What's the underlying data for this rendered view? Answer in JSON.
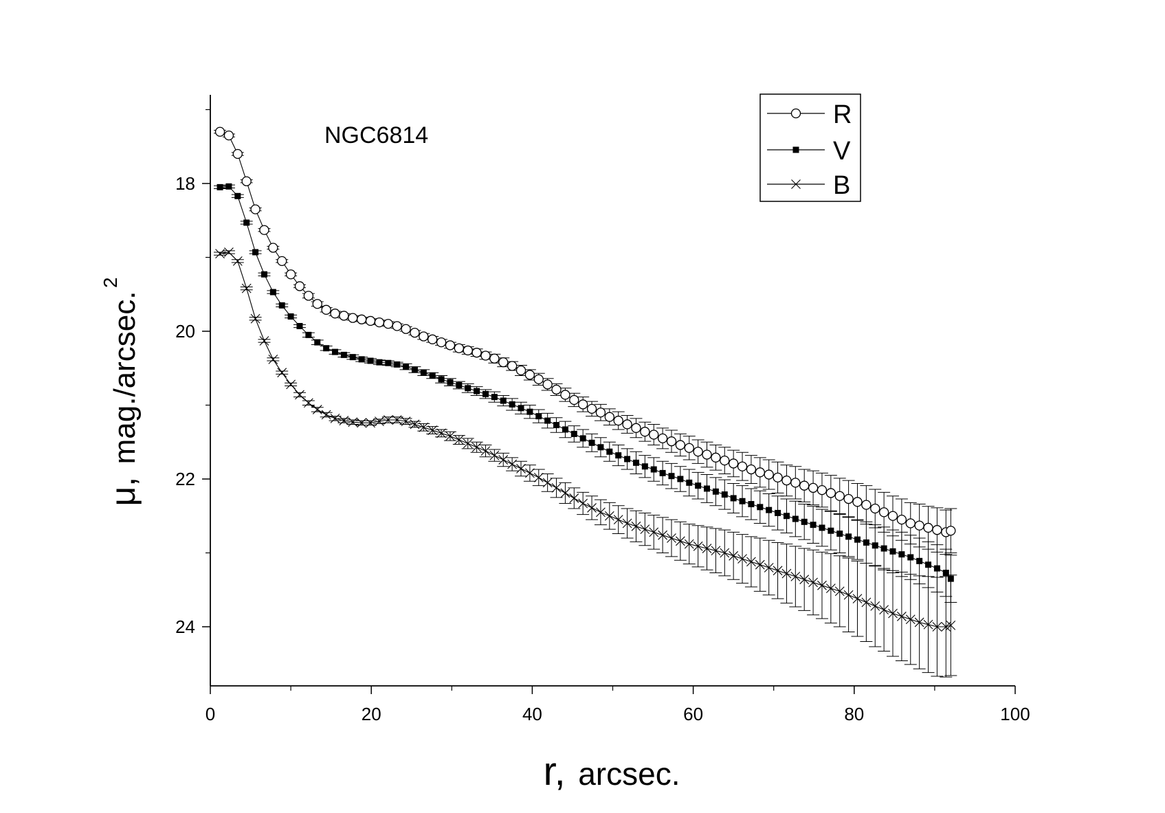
{
  "chart_data": {
    "type": "line",
    "annotation": "NGC6814",
    "xlabel_symbol": "r,",
    "xlabel_unit": "arcsec.",
    "ylabel_symbol": "μ,",
    "ylabel_unit": "mag./arcsec.",
    "ylabel_exponent": "2",
    "xlim": [
      0,
      100
    ],
    "ylim": [
      24.8,
      16.8
    ],
    "y_inverted": true,
    "xticks": [
      0,
      20,
      40,
      60,
      80,
      100
    ],
    "xtick_labels": [
      "0",
      "20",
      "40",
      "60",
      "80",
      "100"
    ],
    "yticks": [
      18,
      20,
      22,
      24
    ],
    "ytick_labels": [
      "18",
      "20",
      "22",
      "24"
    ],
    "legend_position": "top-right",
    "series": [
      {
        "name": "R",
        "marker": "open-circle",
        "x": [
          1.2,
          2.3,
          3.4,
          4.5,
          5.6,
          6.7,
          7.8,
          8.9,
          10.0,
          11.1,
          12.2,
          13.3,
          14.4,
          15.5,
          16.6,
          17.7,
          18.8,
          19.9,
          21.0,
          22.1,
          23.2,
          24.3,
          25.4,
          26.5,
          27.6,
          28.7,
          29.8,
          30.9,
          32.0,
          33.1,
          34.2,
          35.3,
          36.4,
          37.5,
          38.6,
          39.7,
          40.8,
          41.9,
          43.0,
          44.1,
          45.2,
          46.3,
          47.4,
          48.5,
          49.6,
          50.7,
          51.8,
          52.9,
          54.0,
          55.1,
          56.2,
          57.3,
          58.4,
          59.5,
          60.6,
          61.7,
          62.8,
          63.9,
          65.0,
          66.1,
          67.2,
          68.3,
          69.4,
          70.5,
          71.6,
          72.7,
          73.8,
          74.9,
          76.0,
          77.1,
          78.2,
          79.3,
          80.4,
          81.5,
          82.6,
          83.7,
          84.8,
          85.9,
          87.0,
          88.1,
          89.2,
          90.3,
          91.4,
          92.0
        ],
        "y": [
          17.3,
          17.35,
          17.6,
          17.97,
          18.35,
          18.63,
          18.87,
          19.05,
          19.23,
          19.39,
          19.52,
          19.63,
          19.71,
          19.76,
          19.79,
          19.82,
          19.84,
          19.86,
          19.88,
          19.9,
          19.93,
          19.97,
          20.02,
          20.07,
          20.11,
          20.15,
          20.19,
          20.23,
          20.26,
          20.29,
          20.33,
          20.37,
          20.42,
          20.47,
          20.53,
          20.59,
          20.65,
          20.72,
          20.79,
          20.86,
          20.93,
          20.99,
          21.05,
          21.1,
          21.16,
          21.21,
          21.26,
          21.31,
          21.36,
          21.4,
          21.45,
          21.49,
          21.54,
          21.58,
          21.63,
          21.67,
          21.71,
          21.75,
          21.79,
          21.83,
          21.87,
          21.91,
          21.94,
          21.98,
          22.02,
          22.05,
          22.09,
          22.12,
          22.15,
          22.19,
          22.23,
          22.27,
          22.31,
          22.35,
          22.4,
          22.45,
          22.5,
          22.55,
          22.6,
          22.63,
          22.66,
          22.69,
          22.72,
          22.7
        ],
        "err": [
          0.02,
          0.02,
          0.02,
          0.02,
          0.02,
          0.02,
          0.02,
          0.02,
          0.02,
          0.02,
          0.03,
          0.03,
          0.03,
          0.03,
          0.03,
          0.03,
          0.03,
          0.03,
          0.03,
          0.03,
          0.03,
          0.03,
          0.03,
          0.04,
          0.04,
          0.04,
          0.04,
          0.05,
          0.05,
          0.05,
          0.05,
          0.06,
          0.06,
          0.06,
          0.07,
          0.07,
          0.08,
          0.08,
          0.08,
          0.09,
          0.09,
          0.1,
          0.1,
          0.11,
          0.11,
          0.12,
          0.12,
          0.13,
          0.13,
          0.14,
          0.14,
          0.15,
          0.15,
          0.16,
          0.16,
          0.17,
          0.17,
          0.18,
          0.18,
          0.19,
          0.19,
          0.2,
          0.2,
          0.21,
          0.21,
          0.22,
          0.22,
          0.23,
          0.23,
          0.24,
          0.24,
          0.25,
          0.25,
          0.26,
          0.26,
          0.27,
          0.27,
          0.28,
          0.28,
          0.29,
          0.29,
          0.3,
          0.3,
          0.3
        ]
      },
      {
        "name": "V",
        "marker": "filled-square",
        "x": [
          1.2,
          2.3,
          3.4,
          4.5,
          5.6,
          6.7,
          7.8,
          8.9,
          10.0,
          11.1,
          12.2,
          13.3,
          14.4,
          15.5,
          16.6,
          17.7,
          18.8,
          19.9,
          21.0,
          22.1,
          23.2,
          24.3,
          25.4,
          26.5,
          27.6,
          28.7,
          29.8,
          30.9,
          32.0,
          33.1,
          34.2,
          35.3,
          36.4,
          37.5,
          38.6,
          39.7,
          40.8,
          41.9,
          43.0,
          44.1,
          45.2,
          46.3,
          47.4,
          48.5,
          49.6,
          50.7,
          51.8,
          52.9,
          54.0,
          55.1,
          56.2,
          57.3,
          58.4,
          59.5,
          60.6,
          61.7,
          62.8,
          63.9,
          65.0,
          66.1,
          67.2,
          68.3,
          69.4,
          70.5,
          71.6,
          72.7,
          73.8,
          74.9,
          76.0,
          77.1,
          78.2,
          79.3,
          80.4,
          81.5,
          82.6,
          83.7,
          84.8,
          85.9,
          87.0,
          88.1,
          89.2,
          90.3,
          91.4,
          92.0
        ],
        "y": [
          18.05,
          18.04,
          18.17,
          18.53,
          18.93,
          19.23,
          19.47,
          19.65,
          19.8,
          19.93,
          20.05,
          20.15,
          20.23,
          20.28,
          20.32,
          20.35,
          20.38,
          20.4,
          20.42,
          20.43,
          20.45,
          20.48,
          20.52,
          20.56,
          20.6,
          20.65,
          20.69,
          20.73,
          20.77,
          20.81,
          20.85,
          20.89,
          20.94,
          20.99,
          21.04,
          21.09,
          21.15,
          21.21,
          21.27,
          21.33,
          21.39,
          21.45,
          21.51,
          21.57,
          21.63,
          21.68,
          21.73,
          21.78,
          21.83,
          21.87,
          21.92,
          21.96,
          22.0,
          22.05,
          22.09,
          22.13,
          22.17,
          22.21,
          22.26,
          22.3,
          22.34,
          22.38,
          22.42,
          22.46,
          22.5,
          22.54,
          22.58,
          22.62,
          22.66,
          22.7,
          22.74,
          22.78,
          22.82,
          22.86,
          22.9,
          22.94,
          22.98,
          23.02,
          23.06,
          23.11,
          23.16,
          23.21,
          23.27,
          23.35
        ],
        "err": [
          0.02,
          0.02,
          0.02,
          0.02,
          0.02,
          0.02,
          0.02,
          0.02,
          0.02,
          0.02,
          0.03,
          0.03,
          0.03,
          0.03,
          0.03,
          0.03,
          0.03,
          0.03,
          0.03,
          0.03,
          0.03,
          0.04,
          0.04,
          0.04,
          0.04,
          0.05,
          0.05,
          0.05,
          0.06,
          0.06,
          0.06,
          0.07,
          0.07,
          0.08,
          0.08,
          0.09,
          0.09,
          0.1,
          0.1,
          0.11,
          0.11,
          0.12,
          0.12,
          0.13,
          0.13,
          0.14,
          0.14,
          0.15,
          0.15,
          0.16,
          0.16,
          0.17,
          0.17,
          0.18,
          0.18,
          0.19,
          0.19,
          0.2,
          0.2,
          0.21,
          0.21,
          0.22,
          0.22,
          0.23,
          0.23,
          0.24,
          0.24,
          0.25,
          0.25,
          0.26,
          0.26,
          0.27,
          0.27,
          0.28,
          0.28,
          0.29,
          0.29,
          0.3,
          0.3,
          0.31,
          0.31,
          0.32,
          0.32,
          0.32
        ]
      },
      {
        "name": "B",
        "marker": "cross",
        "x": [
          1.2,
          2.3,
          3.4,
          4.5,
          5.6,
          6.7,
          7.8,
          8.9,
          10.0,
          11.1,
          12.2,
          13.3,
          14.4,
          15.5,
          16.6,
          17.7,
          18.8,
          19.9,
          21.0,
          22.1,
          23.2,
          24.3,
          25.4,
          26.5,
          27.6,
          28.7,
          29.8,
          30.9,
          32.0,
          33.1,
          34.2,
          35.3,
          36.4,
          37.5,
          38.6,
          39.7,
          40.8,
          41.9,
          43.0,
          44.1,
          45.2,
          46.3,
          47.4,
          48.5,
          49.6,
          50.7,
          51.8,
          52.9,
          54.0,
          55.1,
          56.2,
          57.3,
          58.4,
          59.5,
          60.6,
          61.7,
          62.8,
          63.9,
          65.0,
          66.1,
          67.2,
          68.3,
          69.4,
          70.5,
          71.6,
          72.7,
          73.8,
          74.9,
          76.0,
          77.1,
          78.2,
          79.3,
          80.4,
          81.5,
          82.6,
          83.7,
          84.8,
          85.9,
          87.0,
          88.1,
          89.2,
          90.3,
          91.4,
          92.0
        ],
        "y": [
          18.95,
          18.93,
          19.05,
          19.42,
          19.83,
          20.13,
          20.38,
          20.56,
          20.72,
          20.86,
          20.97,
          21.06,
          21.13,
          21.18,
          21.21,
          21.23,
          21.24,
          21.24,
          21.22,
          21.2,
          21.2,
          21.22,
          21.26,
          21.3,
          21.34,
          21.38,
          21.42,
          21.47,
          21.52,
          21.57,
          21.62,
          21.68,
          21.74,
          21.8,
          21.86,
          21.92,
          21.98,
          22.05,
          22.12,
          22.19,
          22.26,
          22.33,
          22.39,
          22.45,
          22.5,
          22.55,
          22.6,
          22.64,
          22.68,
          22.72,
          22.76,
          22.8,
          22.84,
          22.88,
          22.91,
          22.94,
          22.97,
          23.0,
          23.04,
          23.08,
          23.12,
          23.16,
          23.2,
          23.24,
          23.28,
          23.32,
          23.36,
          23.4,
          23.44,
          23.48,
          23.52,
          23.57,
          23.62,
          23.67,
          23.72,
          23.77,
          23.82,
          23.86,
          23.9,
          23.94,
          23.97,
          24.0,
          24.0,
          23.98
        ],
        "err": [
          0.02,
          0.02,
          0.02,
          0.02,
          0.02,
          0.02,
          0.02,
          0.02,
          0.02,
          0.03,
          0.03,
          0.03,
          0.03,
          0.03,
          0.03,
          0.03,
          0.03,
          0.03,
          0.03,
          0.04,
          0.04,
          0.04,
          0.04,
          0.05,
          0.05,
          0.05,
          0.06,
          0.06,
          0.07,
          0.07,
          0.08,
          0.08,
          0.09,
          0.09,
          0.1,
          0.11,
          0.11,
          0.12,
          0.13,
          0.14,
          0.14,
          0.15,
          0.16,
          0.17,
          0.18,
          0.19,
          0.2,
          0.21,
          0.22,
          0.23,
          0.24,
          0.25,
          0.26,
          0.27,
          0.28,
          0.29,
          0.3,
          0.31,
          0.32,
          0.33,
          0.34,
          0.36,
          0.37,
          0.38,
          0.4,
          0.41,
          0.42,
          0.44,
          0.45,
          0.47,
          0.48,
          0.5,
          0.51,
          0.53,
          0.55,
          0.56,
          0.58,
          0.6,
          0.61,
          0.63,
          0.65,
          0.67,
          0.68,
          0.68
        ]
      }
    ]
  }
}
